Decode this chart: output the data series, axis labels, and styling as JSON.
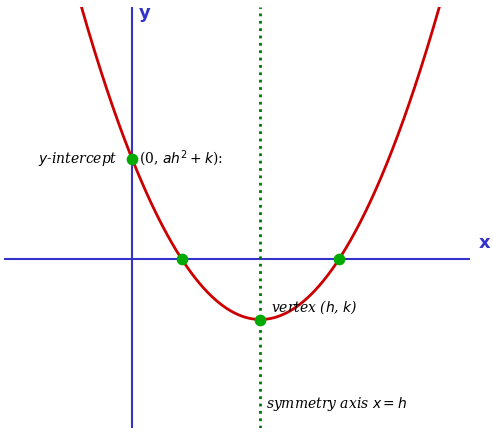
{
  "bg_color": "#ffffff",
  "parabola_color": "#cc0000",
  "axis_color": "#3333cc",
  "dot_color": "#00aa00",
  "sym_axis_color": "#007700",
  "vertex": [
    2.2,
    -1.0
  ],
  "a_value": 0.55,
  "xlim": [
    -2.2,
    5.8
  ],
  "ylim": [
    -2.8,
    4.2
  ],
  "y_intercept_label": "(0, $ah^2 + k$):",
  "y_intercept_prefix": "$y$-intercept ",
  "vertex_label": "vertex ($h$, $k$)",
  "sym_axis_label": "symmetry axis $x = h$",
  "xlabel": "x",
  "ylabel": "y",
  "dot_size": 55,
  "dot_zorder": 5
}
